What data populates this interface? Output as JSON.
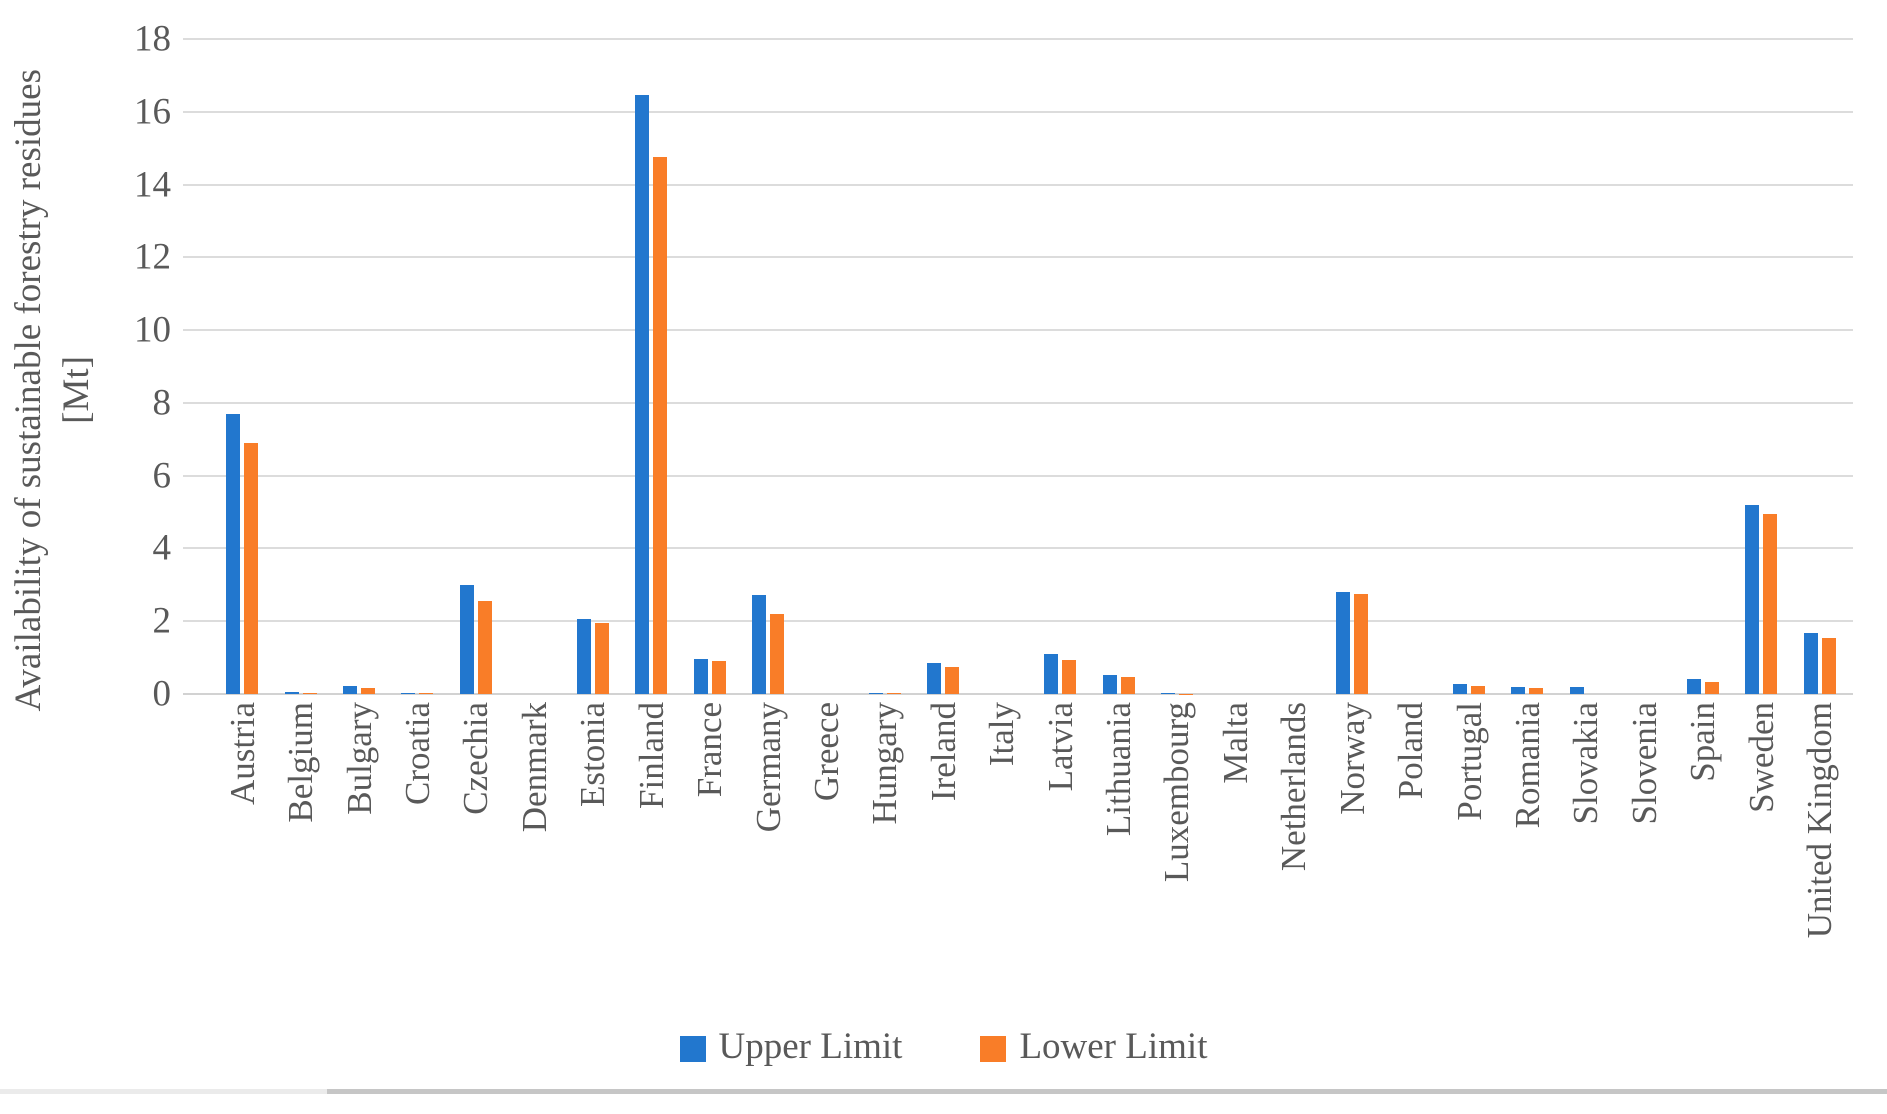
{
  "chart_data": {
    "type": "bar",
    "title": "",
    "ylabel_line1": "Availability of sustainable forestry residues",
    "ylabel_line2": "[Mt]",
    "xlabel": "",
    "ylim": [
      0,
      18
    ],
    "yticks": [
      0,
      2,
      4,
      6,
      8,
      10,
      12,
      14,
      16,
      18
    ],
    "grid": "horizontal",
    "legend_position": "bottom-center",
    "categories": [
      "Austria",
      "Belgium",
      "Bulgary",
      "Croatia",
      "Czechia",
      "Denmark",
      "Estonia",
      "Finland",
      "France",
      "Germany",
      "Greece",
      "Hungary",
      "Ireland",
      "Italy",
      "Latvia",
      "Lithuania",
      "Luxembourg",
      "Malta",
      "Netherlands",
      "Norway",
      "Poland",
      "Portugal",
      "Romania",
      "Slovakia",
      "Slovenia",
      "Spain",
      "Sweden",
      "United Kingdom"
    ],
    "series": [
      {
        "name": "Upper Limit",
        "color": "#2277CE",
        "values": [
          7.7,
          0.05,
          0.22,
          0.04,
          3.0,
          0,
          2.07,
          16.45,
          0.97,
          2.72,
          0,
          0.03,
          0.85,
          0,
          1.1,
          0.52,
          0.02,
          0,
          0,
          2.8,
          0,
          0.27,
          0.2,
          0.2,
          0,
          0.42,
          5.2,
          1.68
        ]
      },
      {
        "name": "Lower Limit",
        "color": "#F97D28",
        "values": [
          6.9,
          0.04,
          0.17,
          0.03,
          2.55,
          0,
          1.95,
          14.75,
          0.91,
          2.2,
          0,
          0.02,
          0.74,
          0,
          0.93,
          0.48,
          0.01,
          0,
          0,
          2.75,
          0,
          0.21,
          0.16,
          0,
          0,
          0.32,
          4.95,
          1.55
        ]
      }
    ]
  },
  "colors": {
    "text": "#595959",
    "gridline": "#DCDCDC",
    "baseline": "#D2D2D2",
    "strip_left": "#EBEBEB",
    "strip_right": "#C6C6C6"
  }
}
